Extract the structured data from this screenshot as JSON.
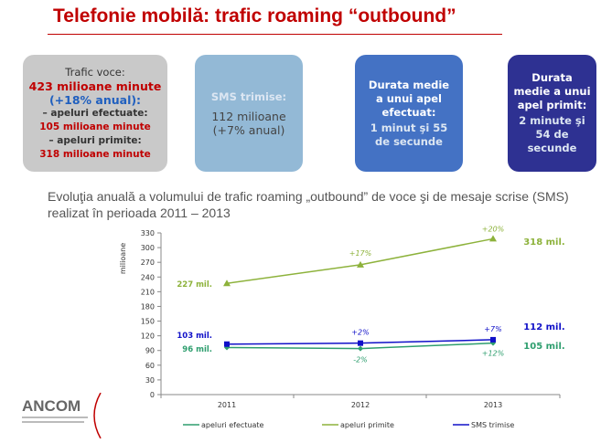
{
  "title": "Telefonie mobilă: trafic roaming “outbound”",
  "boxes": {
    "voice": {
      "label": "Trafic voce:",
      "total": "423 milioane minute",
      "growth": "(+18% anual):",
      "out_label": "– apeluri efectuate:",
      "out_value": "105 milioane minute",
      "in_label": "– apeluri primite:",
      "in_value": "318 milioane minute"
    },
    "sms": {
      "label": "SMS trimise:",
      "value": "112 milioane",
      "growth": "(+7% anual)"
    },
    "out_duration": {
      "label": "Durata medie a unui apel efectuat:",
      "value": "1 minut şi 55 de secunde"
    },
    "in_duration": {
      "label": "Durata medie a unui apel primit:",
      "value": "2 minute şi 54 de secunde"
    }
  },
  "subtitle": "Evoluţia anuală a volumului de trafic roaming „outbound” de voce şi de mesaje scrise (SMS) realizat în perioada 2011 – 2013",
  "logo": {
    "text": "ANCOM"
  },
  "chart_data": {
    "type": "line",
    "ylabel": "milioane",
    "ylim": [
      0,
      330
    ],
    "yticks": [
      0,
      30,
      60,
      90,
      120,
      150,
      180,
      210,
      240,
      270,
      300,
      330
    ],
    "categories": [
      "2011",
      "2012",
      "2013"
    ],
    "legend": "bottom",
    "series": [
      {
        "name": "apeluri efectuate",
        "color": "#2e9e6e",
        "marker": "diamond",
        "values": [
          96,
          94,
          105
        ],
        "start_label": "96 mil.",
        "end_label": "105 mil.",
        "growth_labels": [
          "",
          "-2%",
          "+12%"
        ]
      },
      {
        "name": "apeluri primite",
        "color": "#8db23b",
        "marker": "triangle",
        "values": [
          227,
          265,
          318
        ],
        "start_label": "227 mil.",
        "end_label": "318 mil.",
        "growth_labels": [
          "",
          "+17%",
          "+20%"
        ]
      },
      {
        "name": "SMS trimise",
        "color": "#1010c8",
        "marker": "square",
        "values": [
          103,
          105,
          112
        ],
        "start_label": "103 mil.",
        "end_label": "112 mil.",
        "growth_labels": [
          "",
          "+2%",
          "+7%"
        ]
      }
    ]
  }
}
